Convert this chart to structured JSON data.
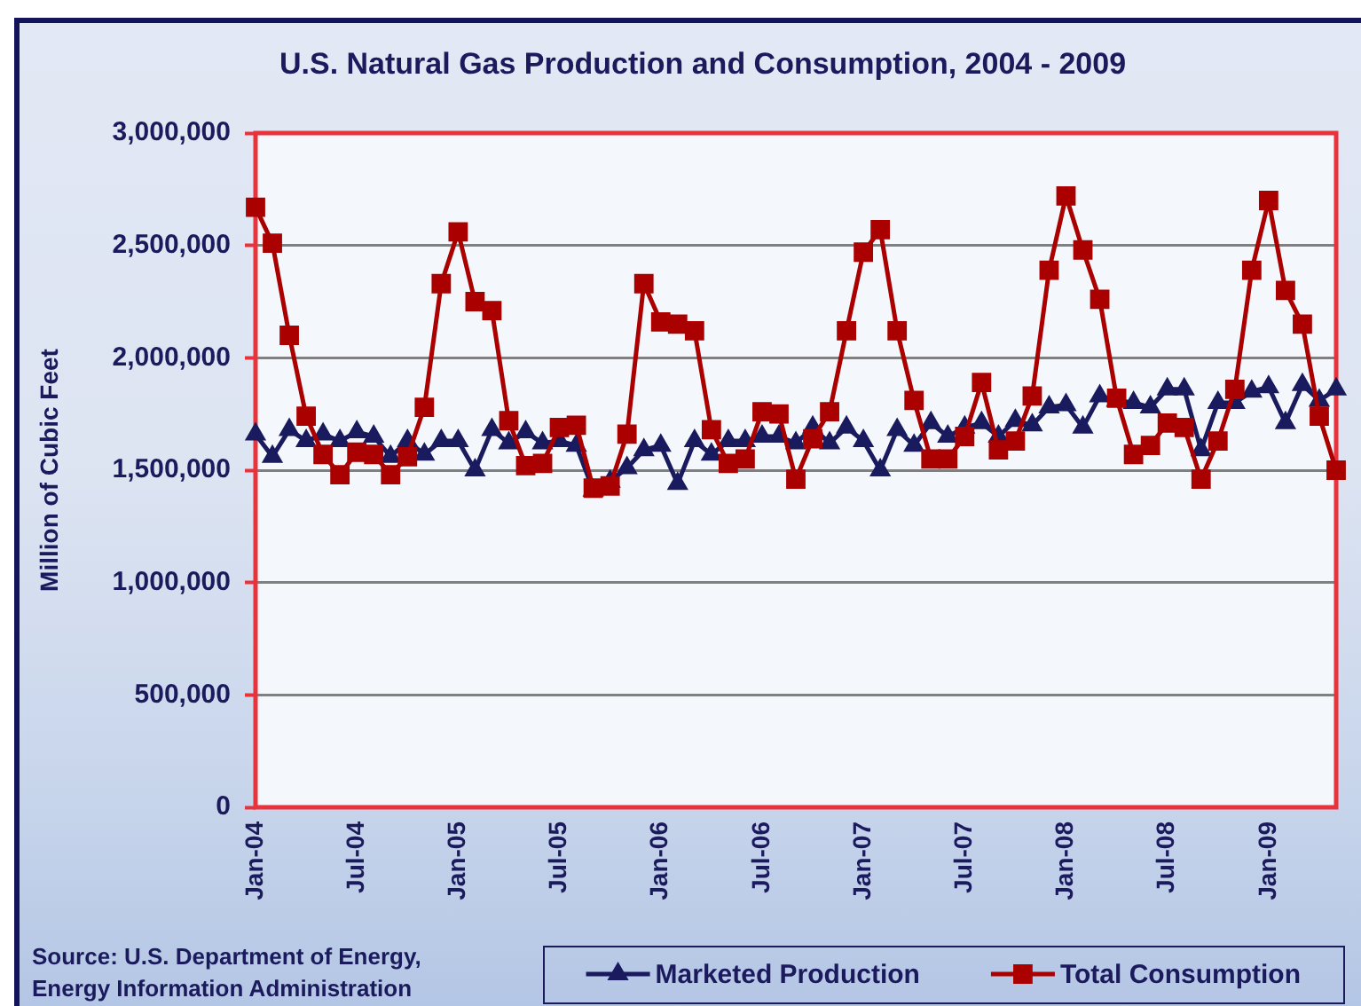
{
  "chart_data": {
    "type": "line",
    "title": "U.S. Natural Gas Production and Consumption, 2004 - 2009",
    "ylabel": "Million of Cubic Feet",
    "annotations": [
      "Source: U.S. Department of Energy, Energy Information Administration"
    ],
    "categories": [
      "Jan-04",
      null,
      null,
      null,
      null,
      null,
      "Jul-04",
      null,
      null,
      null,
      null,
      null,
      "Jan-05",
      null,
      null,
      null,
      null,
      null,
      "Jul-05",
      null,
      null,
      null,
      null,
      null,
      "Jan-06",
      null,
      null,
      null,
      null,
      null,
      "Jul-06",
      null,
      null,
      null,
      null,
      null,
      "Jan-07",
      null,
      null,
      null,
      null,
      null,
      "Jul-07",
      null,
      null,
      null,
      null,
      null,
      "Jan-08",
      null,
      null,
      null,
      null,
      null,
      "Jul-08",
      null,
      null,
      null,
      null,
      null,
      "Jan-09",
      null,
      null,
      null,
      null
    ],
    "series": [
      {
        "name": "Marketed Production",
        "color": "#1a1a5e",
        "marker": "triangle",
        "values": [
          1660000,
          1560000,
          1680000,
          1630000,
          1660000,
          1630000,
          1670000,
          1650000,
          1560000,
          1630000,
          1570000,
          1630000,
          1630000,
          1500000,
          1680000,
          1620000,
          1670000,
          1620000,
          1630000,
          1610000,
          1410000,
          1450000,
          1510000,
          1590000,
          1610000,
          1440000,
          1630000,
          1570000,
          1630000,
          1630000,
          1650000,
          1650000,
          1620000,
          1690000,
          1620000,
          1690000,
          1630000,
          1500000,
          1680000,
          1610000,
          1710000,
          1650000,
          1690000,
          1710000,
          1650000,
          1720000,
          1700000,
          1780000,
          1790000,
          1690000,
          1830000,
          1810000,
          1800000,
          1780000,
          1860000,
          1860000,
          1590000,
          1800000,
          1800000,
          1850000,
          1870000,
          1710000,
          1880000,
          1810000,
          1860000
        ]
      },
      {
        "name": "Total Consumption",
        "color": "#aa0000",
        "marker": "square",
        "values": [
          2670000,
          2510000,
          2100000,
          1740000,
          1570000,
          1480000,
          1580000,
          1570000,
          1480000,
          1560000,
          1780000,
          2330000,
          2560000,
          2250000,
          2210000,
          1720000,
          1520000,
          1530000,
          1690000,
          1700000,
          1420000,
          1430000,
          1660000,
          2330000,
          2160000,
          2150000,
          2120000,
          1680000,
          1530000,
          1550000,
          1760000,
          1750000,
          1460000,
          1640000,
          1760000,
          2120000,
          2470000,
          2570000,
          2120000,
          1810000,
          1550000,
          1550000,
          1650000,
          1890000,
          1590000,
          1630000,
          1830000,
          2390000,
          2720000,
          2480000,
          2260000,
          1820000,
          1570000,
          1610000,
          1710000,
          1690000,
          1460000,
          1630000,
          1860000,
          2390000,
          2700000,
          2300000,
          2150000,
          1740000,
          1500000
        ]
      }
    ],
    "ylim": [
      0,
      3000000
    ],
    "yticks": [
      0,
      {
        "value": 500000,
        "label": "500,000"
      },
      {
        "value": 1000000,
        "label": "1,000,000"
      },
      {
        "value": 1500000,
        "label": "1,500,000"
      },
      {
        "value": 2000000,
        "label": "2,000,000"
      },
      {
        "value": 2500000,
        "label": "2,500,000"
      },
      {
        "value": 3000000,
        "label": "3,000,000"
      }
    ],
    "grid": "y",
    "legend": "bottom right"
  }
}
